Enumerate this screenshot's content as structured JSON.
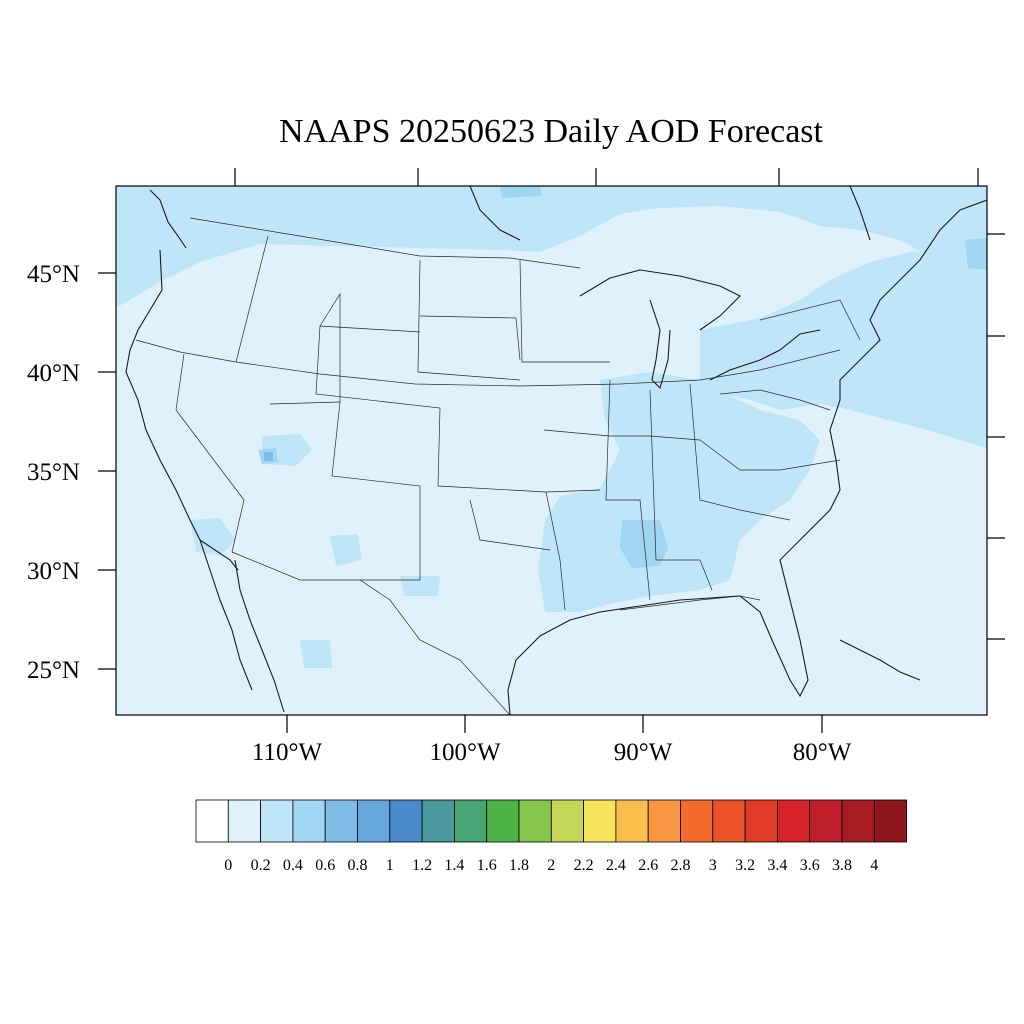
{
  "title": "NAAPS 20250623 Daily AOD Forecast",
  "map": {
    "lat_labels": [
      "45°N",
      "40°N",
      "35°N",
      "30°N",
      "25°N"
    ],
    "lon_labels": [
      "110°W",
      "100°W",
      "90°W",
      "80°W"
    ],
    "background_value_color": "#dff2fb"
  },
  "colorbar": {
    "labels": [
      "0",
      "0.2",
      "0.4",
      "0.6",
      "0.8",
      "1",
      "1.2",
      "1.4",
      "1.6",
      "1.8",
      "2",
      "2.2",
      "2.4",
      "2.6",
      "2.8",
      "3",
      "3.2",
      "3.4",
      "3.6",
      "3.8",
      "4"
    ],
    "colors": [
      "#ffffff",
      "#dff2fb",
      "#bfe6f8",
      "#9ed6f3",
      "#80bde6",
      "#68a7dc",
      "#4a8acb",
      "#4a9a9e",
      "#48a574",
      "#4bb347",
      "#86c54e",
      "#c3d657",
      "#f8e45a",
      "#f8bd4b",
      "#f79741",
      "#f46c2d",
      "#ea5329",
      "#e13b27",
      "#d42329",
      "#bf1e2a",
      "#a71b22",
      "#8f161c"
    ]
  }
}
